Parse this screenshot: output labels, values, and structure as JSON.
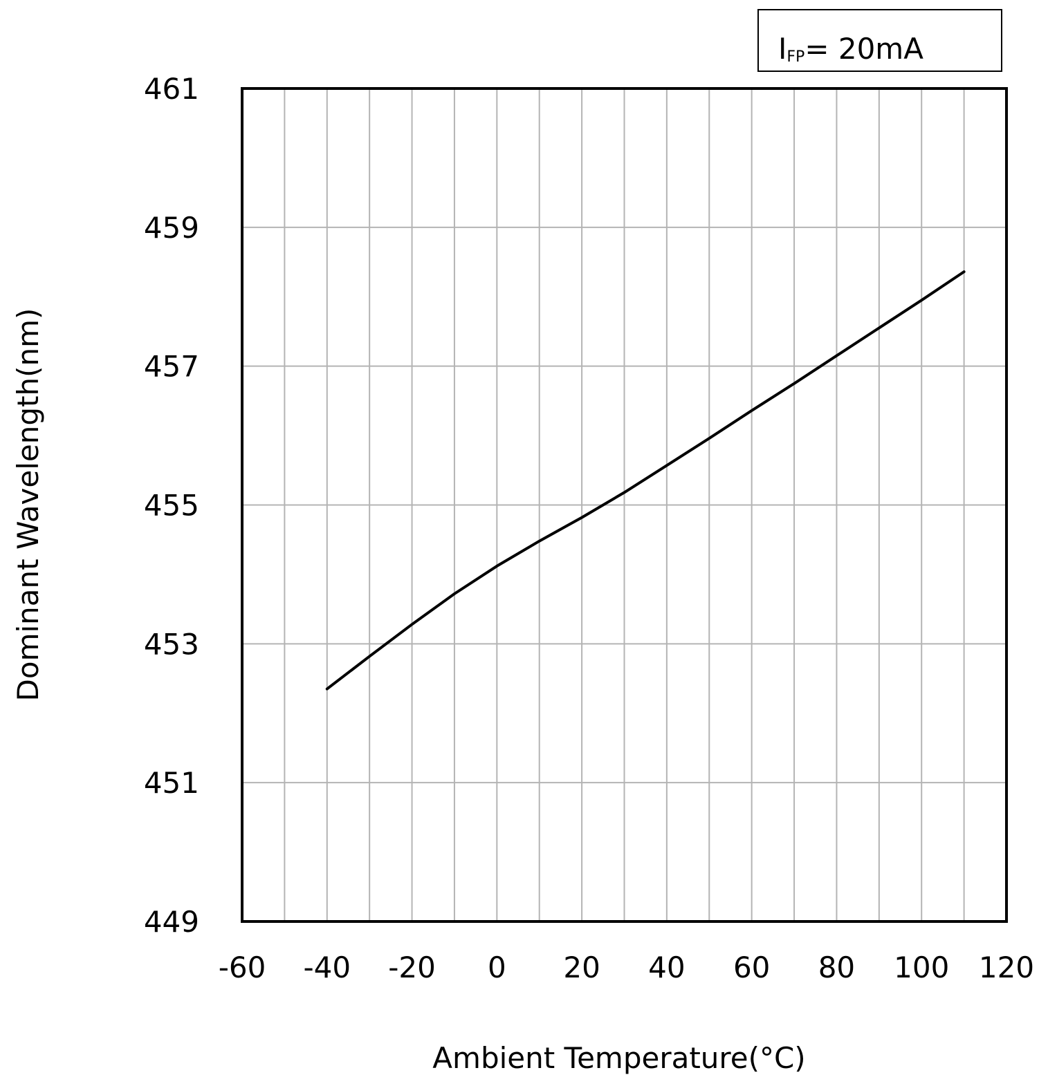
{
  "chart_data": {
    "type": "line",
    "xlabel": "Ambient Temperature(°C)",
    "ylabel": "Dominant Wavelength(nm)",
    "xlim": [
      -60,
      120
    ],
    "ylim": [
      449,
      461
    ],
    "x_ticks": [
      "-60",
      "-40",
      "-20",
      "0",
      "20",
      "40",
      "60",
      "80",
      "100",
      "120"
    ],
    "y_ticks": [
      "449",
      "451",
      "453",
      "455",
      "457",
      "459",
      "461"
    ],
    "x_minor_step": 10,
    "grid": true,
    "legend_position": "top-right",
    "annotation": {
      "main": "I",
      "sub": "FP",
      "rest": "= 20mA"
    },
    "series": [
      {
        "x": [
          -40,
          -30,
          -20,
          -10,
          0,
          10,
          20,
          30,
          40,
          50,
          60,
          70,
          80,
          90,
          100,
          110
        ],
        "y": [
          452.35,
          452.82,
          453.28,
          453.72,
          454.12,
          454.48,
          454.82,
          455.18,
          455.57,
          455.96,
          456.36,
          456.75,
          457.15,
          457.55,
          457.95,
          458.36
        ]
      }
    ],
    "colors": {
      "line": "#000000",
      "grid": "#b4b4b4",
      "frame": "#000000"
    }
  }
}
